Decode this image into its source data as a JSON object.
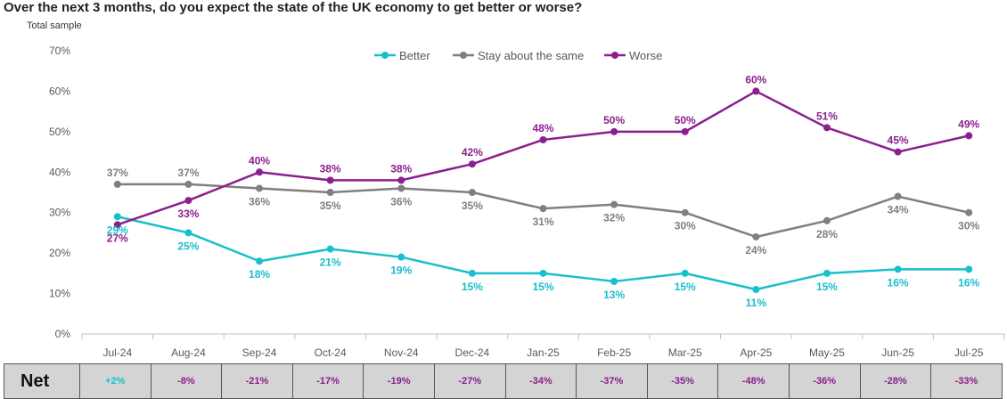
{
  "title": "Over the next 3 months, do you expect the state of the UK economy to get better or worse?",
  "subtitle": "Total sample",
  "chart_data": {
    "type": "line",
    "title": "Over the next 3 months, do you expect the state of the UK economy to get better or worse?",
    "subtitle": "Total sample",
    "categories": [
      "Jul-24",
      "Aug-24",
      "Sep-24",
      "Oct-24",
      "Nov-24",
      "Dec-24",
      "Jan-25",
      "Feb-25",
      "Mar-25",
      "Apr-25",
      "May-25",
      "Jun-25",
      "Jul-25"
    ],
    "ylim": [
      0,
      70
    ],
    "yticks": [
      0,
      10,
      20,
      30,
      40,
      50,
      60,
      70
    ],
    "ytick_labels": [
      "0%",
      "10%",
      "20%",
      "30%",
      "40%",
      "50%",
      "60%",
      "70%"
    ],
    "grid": false,
    "legend": "top-center",
    "series": [
      {
        "name": "Better",
        "color": "#18bfcc",
        "values": [
          29,
          25,
          18,
          21,
          19,
          15,
          15,
          13,
          15,
          11,
          15,
          16,
          16
        ],
        "labels": [
          "29%",
          "25%",
          "18%",
          "21%",
          "19%",
          "15%",
          "15%",
          "13%",
          "15%",
          "11%",
          "15%",
          "16%",
          "16%"
        ]
      },
      {
        "name": "Stay about the same",
        "color": "#7f7f7f",
        "values": [
          37,
          37,
          36,
          35,
          36,
          35,
          31,
          32,
          30,
          24,
          28,
          34,
          30
        ],
        "labels": [
          "37%",
          "37%",
          "36%",
          "35%",
          "36%",
          "35%",
          "31%",
          "32%",
          "30%",
          "24%",
          "28%",
          "34%",
          "30%"
        ]
      },
      {
        "name": "Worse",
        "color": "#8b1f8e",
        "values": [
          27,
          33,
          40,
          38,
          38,
          42,
          48,
          50,
          50,
          60,
          51,
          45,
          49
        ],
        "labels": [
          "27%",
          "33%",
          "40%",
          "38%",
          "38%",
          "42%",
          "48%",
          "50%",
          "50%",
          "60%",
          "51%",
          "45%",
          "49%"
        ]
      }
    ]
  },
  "net": {
    "label": "Net",
    "values": [
      "+2%",
      "-8%",
      "-21%",
      "-17%",
      "-19%",
      "-27%",
      "-34%",
      "-37%",
      "-35%",
      "-48%",
      "-36%",
      "-28%",
      "-33%"
    ],
    "positive_color": "#18bfcc",
    "negative_color": "#8b1f8e"
  }
}
